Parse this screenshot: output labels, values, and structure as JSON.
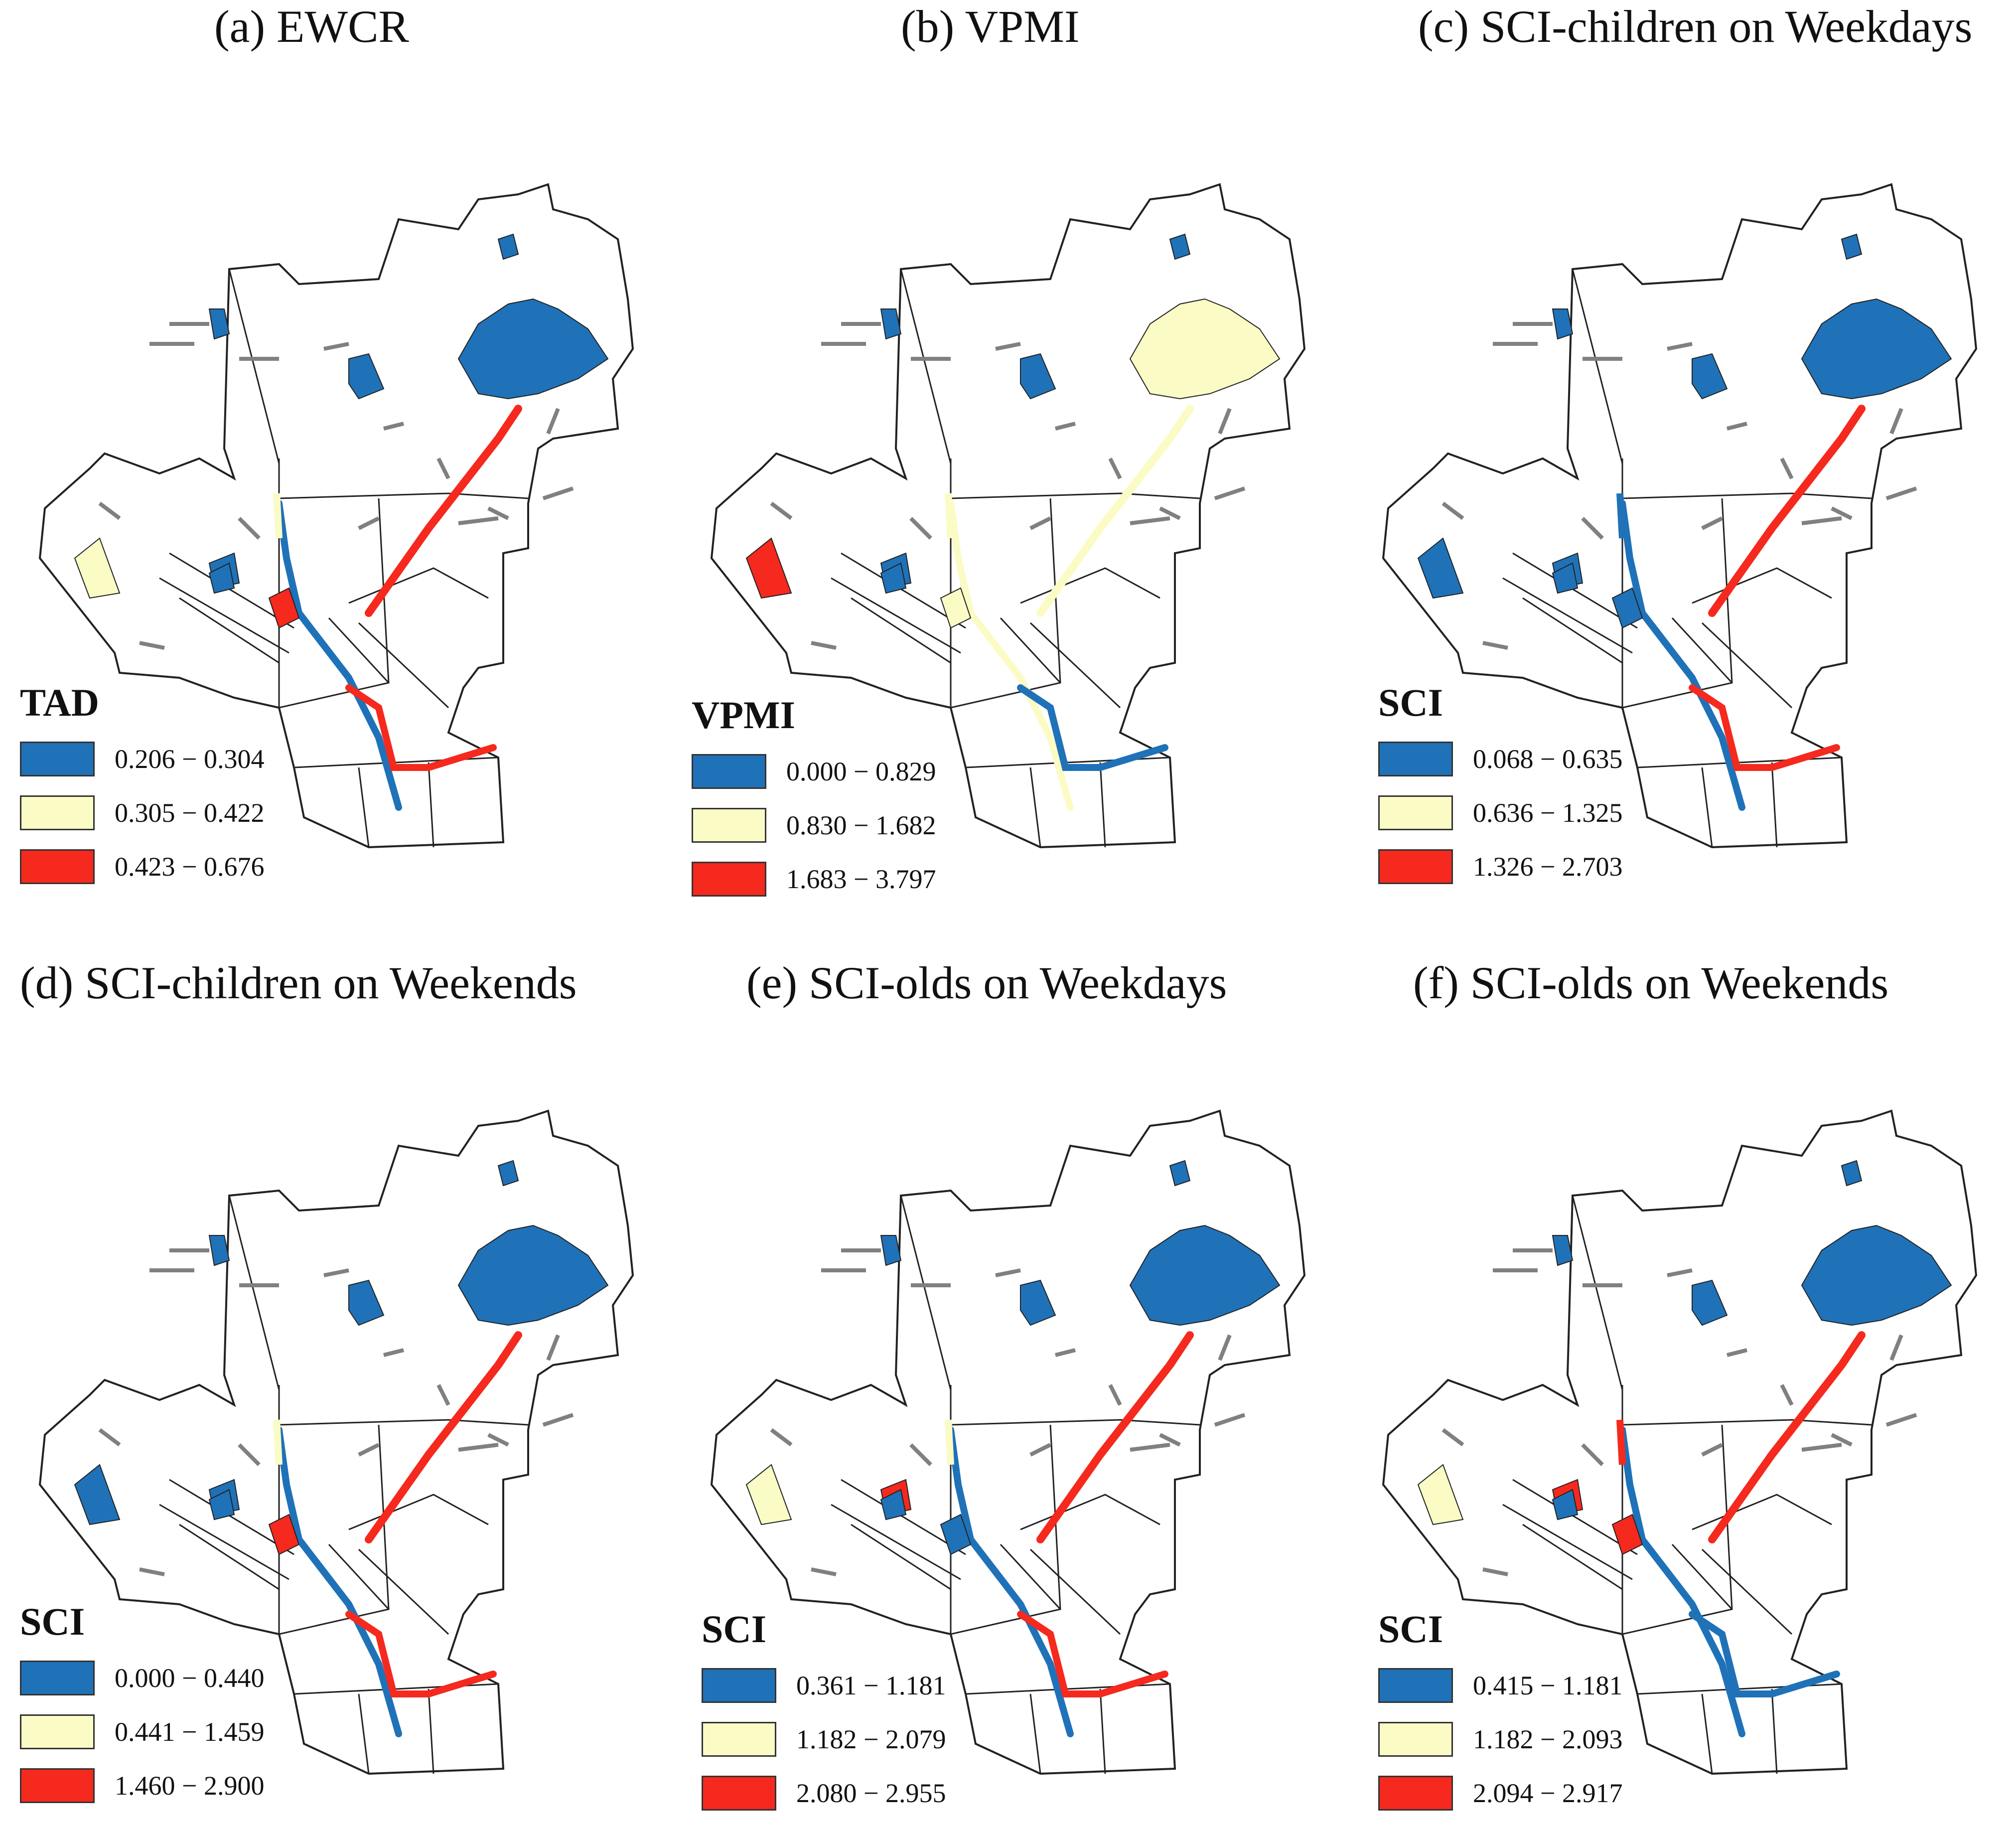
{
  "colors": {
    "low": "#1f72b8",
    "mid": "#fbfbc5",
    "high": "#f5291d",
    "outline": "#222222",
    "none": "#808080"
  },
  "panels": [
    {
      "id": "a",
      "title": "(a) EWCR",
      "legend_title": "TAD",
      "classes": [
        "0.206 − 0.304",
        "0.305 − 0.422",
        "0.423 − 0.676"
      ],
      "park": "low",
      "west": "mid",
      "sw": "low",
      "corridor": "low",
      "diag": "high",
      "north_seg": "mid",
      "south": "high",
      "upper_blob": "high"
    },
    {
      "id": "b",
      "title": "(b) VPMI",
      "legend_title": "VPMI",
      "classes": [
        "0.000 − 0.829",
        "0.830 − 1.682",
        "1.683 − 3.797"
      ],
      "park": "mid",
      "west": "high",
      "sw": "low",
      "corridor": "mid",
      "diag": "mid",
      "north_seg": "mid",
      "south": "low",
      "upper_blob": "mid"
    },
    {
      "id": "c",
      "title": "(c) SCI-children on Weekdays",
      "legend_title": "SCI",
      "classes": [
        "0.068 − 0.635",
        "0.636 − 1.325",
        "1.326 − 2.703"
      ],
      "park": "low",
      "west": "low",
      "sw": "low",
      "corridor": "low",
      "diag": "high",
      "north_seg": "low",
      "south": "high",
      "upper_blob": "low"
    },
    {
      "id": "d",
      "title": "(d) SCI-children on Weekends",
      "legend_title": "SCI",
      "classes": [
        "0.000 − 0.440",
        "0.441 − 1.459",
        "1.460 − 2.900"
      ],
      "park": "low",
      "west": "low",
      "sw": "low",
      "corridor": "low",
      "diag": "high",
      "north_seg": "mid",
      "south": "high",
      "upper_blob": "high"
    },
    {
      "id": "e",
      "title": "(e) SCI-olds on Weekdays",
      "legend_title": "SCI",
      "classes": [
        "0.361 − 1.181",
        "1.182 − 2.079",
        "2.080 − 2.955"
      ],
      "park": "low",
      "west": "mid",
      "sw": "high",
      "corridor": "low",
      "diag": "high",
      "north_seg": "mid",
      "south": "high",
      "upper_blob": "low"
    },
    {
      "id": "f",
      "title": "(f) SCI-olds on Weekends",
      "legend_title": "SCI",
      "classes": [
        "0.415 − 1.181",
        "1.182 − 2.093",
        "2.094 − 2.917"
      ],
      "park": "low",
      "west": "mid",
      "sw": "high",
      "corridor": "low",
      "diag": "high",
      "north_seg": "high",
      "south": "low",
      "upper_blob": "high"
    }
  ]
}
